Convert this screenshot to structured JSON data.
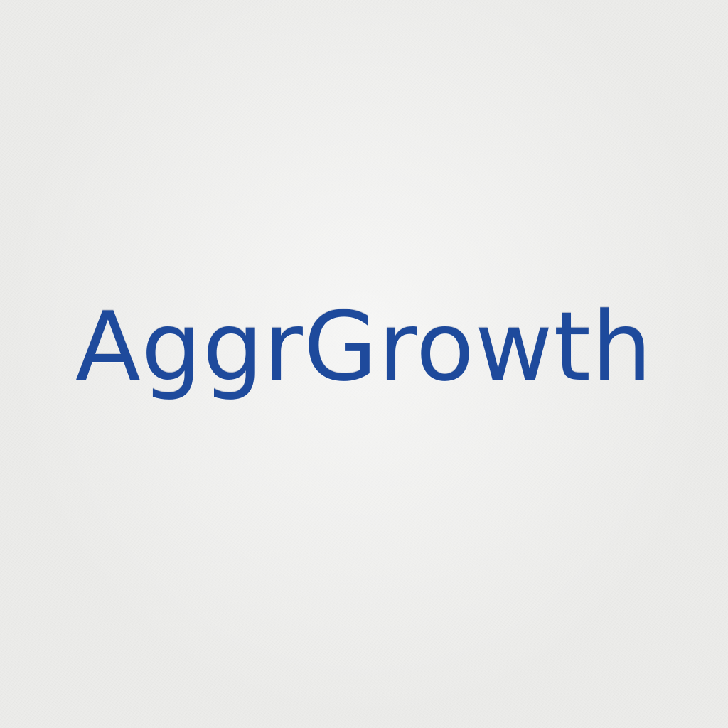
{
  "logo": {
    "wordmark": "AggrGrowth",
    "text_color": "#1e4a9c"
  },
  "background": {
    "color": "#ececea",
    "texture": "paper"
  }
}
